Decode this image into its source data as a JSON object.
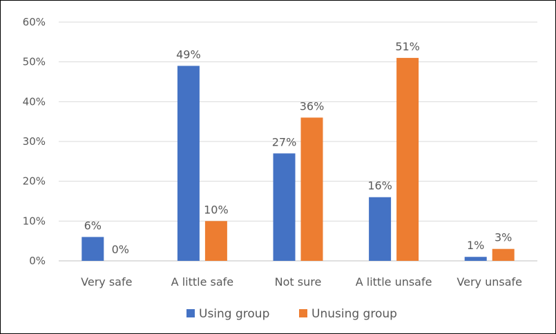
{
  "chart_data": {
    "type": "bar",
    "categories": [
      "Very safe",
      "A little safe",
      "Not sure",
      "A little unsafe",
      "Very unsafe"
    ],
    "series": [
      {
        "name": "Using group",
        "values": [
          6,
          49,
          27,
          16,
          1
        ],
        "value_labels": [
          "6%",
          "49%",
          "27%",
          "16%",
          "1%"
        ],
        "color": "#4472C4"
      },
      {
        "name": "Unusing group",
        "values": [
          0,
          10,
          36,
          51,
          3
        ],
        "value_labels": [
          "0%",
          "10%",
          "36%",
          "51%",
          "3%"
        ],
        "color": "#ED7D31"
      }
    ],
    "ylim": [
      0,
      60
    ],
    "yticks": [
      0,
      10,
      20,
      30,
      40,
      50,
      60
    ],
    "ytick_labels": [
      "0%",
      "10%",
      "20%",
      "30%",
      "40%",
      "50%",
      "60%"
    ],
    "grid": true,
    "legend": "bottom",
    "title": "",
    "xlabel": "",
    "ylabel": "",
    "gridline_color": "#D9D9D9",
    "axis_color": "#BFBFBF"
  }
}
